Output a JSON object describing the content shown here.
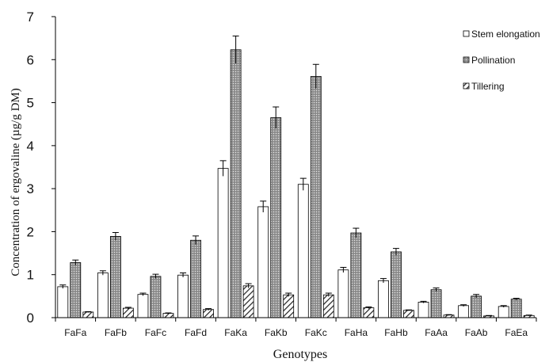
{
  "chart_data": {
    "type": "bar",
    "title": "",
    "xlabel": "Genotypes",
    "ylabel": "Concentration of ergovaline (µg/g DM)",
    "ylim": [
      0,
      7
    ],
    "yticks": [
      "0",
      "1",
      "2",
      "3",
      "4",
      "5",
      "6",
      "7"
    ],
    "grid": false,
    "legend_position": "top-right",
    "categories": [
      "FaFa",
      "FaFb",
      "FaFc",
      "FaFd",
      "FaKa",
      "FaKb",
      "FaKc",
      "FaHa",
      "FaHb",
      "FaAa",
      "FaAb",
      "FaEa"
    ],
    "series": [
      {
        "name": "Stem elongation",
        "pattern": "white",
        "values": [
          0.72,
          1.04,
          0.54,
          0.99,
          3.47,
          2.58,
          3.1,
          1.11,
          0.86,
          0.36,
          0.28,
          0.26
        ],
        "errors": [
          0.04,
          0.05,
          0.03,
          0.05,
          0.18,
          0.13,
          0.14,
          0.06,
          0.05,
          0.02,
          0.02,
          0.02
        ]
      },
      {
        "name": "Pollination",
        "pattern": "dotted-gray",
        "values": [
          1.28,
          1.89,
          0.96,
          1.8,
          6.23,
          4.65,
          5.61,
          1.97,
          1.53,
          0.65,
          0.5,
          0.43
        ],
        "errors": [
          0.06,
          0.09,
          0.05,
          0.1,
          0.32,
          0.25,
          0.28,
          0.11,
          0.08,
          0.04,
          0.04,
          0.02
        ]
      },
      {
        "name": "Tillering",
        "pattern": "hatched",
        "values": [
          0.13,
          0.22,
          0.1,
          0.19,
          0.74,
          0.53,
          0.53,
          0.23,
          0.17,
          0.06,
          0.04,
          0.05
        ],
        "errors": [
          0.01,
          0.02,
          0.01,
          0.02,
          0.05,
          0.04,
          0.04,
          0.02,
          0.01,
          0.01,
          0.01,
          0.01
        ]
      }
    ]
  }
}
